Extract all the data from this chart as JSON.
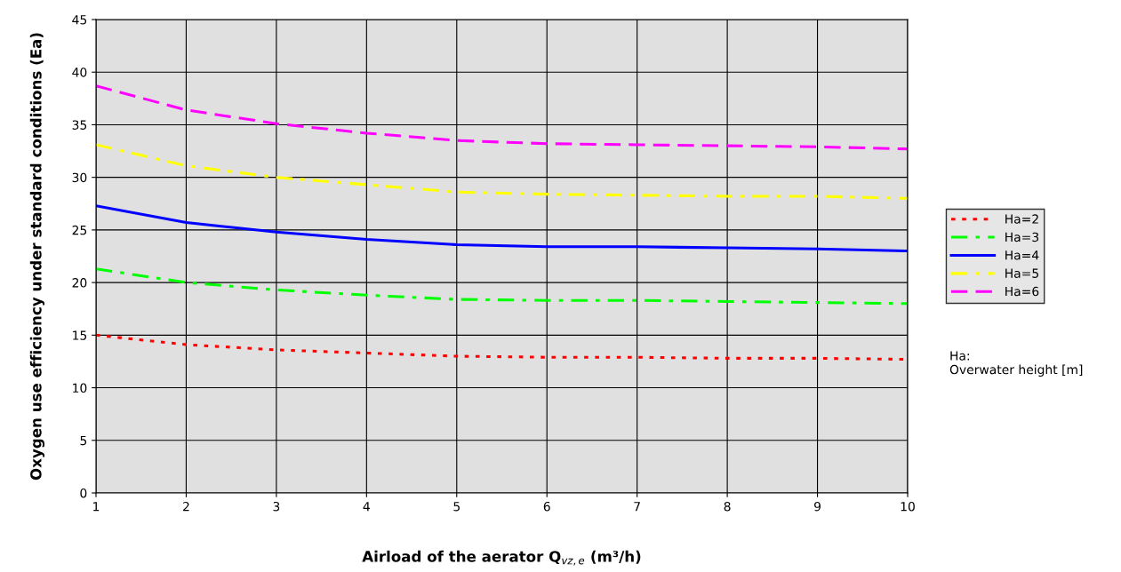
{
  "chart_data": {
    "type": "line",
    "xlabel": "Airload of the aerator Q$_{vz,e}$ (m³/h)",
    "ylabel": "Oxygen use efficiency under standard conditions (Ea)",
    "x": [
      1,
      2,
      3,
      4,
      5,
      6,
      7,
      8,
      9,
      10
    ],
    "series": [
      {
        "name": "Ha=2",
        "color": "#ff0000",
        "line_style": "dotted",
        "values": [
          15.0,
          14.1,
          13.6,
          13.3,
          13.0,
          12.9,
          12.9,
          12.8,
          12.8,
          12.7
        ]
      },
      {
        "name": "Ha=3",
        "color": "#00ff00",
        "line_style": "dashdot",
        "values": [
          21.3,
          20.0,
          19.3,
          18.8,
          18.4,
          18.3,
          18.3,
          18.2,
          18.1,
          18.0
        ]
      },
      {
        "name": "Ha=4",
        "color": "#0000ff",
        "line_style": "solid",
        "values": [
          27.3,
          25.7,
          24.8,
          24.1,
          23.6,
          23.4,
          23.4,
          23.3,
          23.2,
          23.0
        ]
      },
      {
        "name": "Ha=5",
        "color": "#ffff00",
        "line_style": "dashdot",
        "values": [
          33.1,
          31.1,
          30.0,
          29.3,
          28.6,
          28.4,
          28.3,
          28.2,
          28.2,
          28.0
        ]
      },
      {
        "name": "Ha=6",
        "color": "#ff00ff",
        "line_style": "dashed",
        "values": [
          38.7,
          36.4,
          35.1,
          34.2,
          33.5,
          33.2,
          33.1,
          33.0,
          32.9,
          32.7
        ]
      }
    ],
    "xlim": [
      1,
      10
    ],
    "xticks": [
      1,
      2,
      3,
      4,
      5,
      6,
      7,
      8,
      9,
      10
    ],
    "ylim": [
      0,
      45
    ],
    "yticks": [
      0,
      5,
      10,
      15,
      20,
      25,
      30,
      35,
      40,
      45
    ],
    "grid": true,
    "legend": "right",
    "marker": "none",
    "annotations": [
      "Ha:\nOverwater height [m]"
    ]
  }
}
